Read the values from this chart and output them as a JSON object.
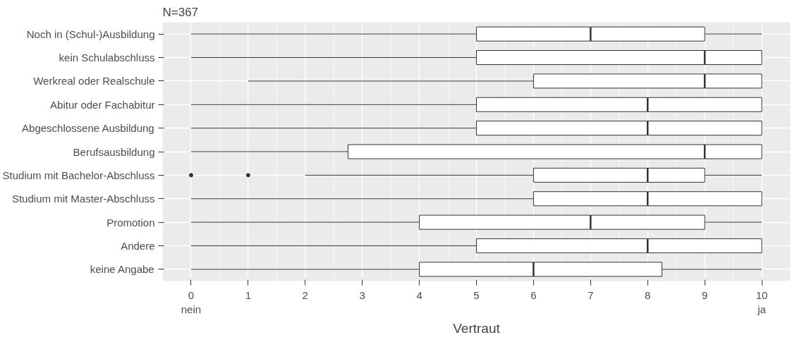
{
  "chart_data": {
    "type": "box",
    "orientation": "horizontal",
    "title": "N=367",
    "xlabel": "Vertraut",
    "categories": [
      "Noch in (Schul-)Ausbildung",
      "kein Schulabschluss",
      "Werkreal oder Realschule",
      "Abitur oder Fachabitur",
      "Abgeschlossene Ausbildung",
      "Berufsausbildung",
      "Studium mit Bachelor-Abschluss",
      "Studium mit Master-Abschluss",
      "Promotion",
      "Andere",
      "keine Angabe"
    ],
    "boxes": [
      {
        "low": 0,
        "q1": 5,
        "median": 7,
        "q3": 9,
        "high": 10
      },
      {
        "low": 0,
        "q1": 5,
        "median": 9,
        "q3": 10,
        "high": 10
      },
      {
        "low": 1,
        "q1": 6,
        "median": 9,
        "q3": 10,
        "high": 10
      },
      {
        "low": 0,
        "q1": 5,
        "median": 8,
        "q3": 10,
        "high": 10
      },
      {
        "low": 0,
        "q1": 5,
        "median": 8,
        "q3": 10,
        "high": 10
      },
      {
        "low": 0,
        "q1": 2.75,
        "median": 9,
        "q3": 10,
        "high": 10
      },
      {
        "low": 2,
        "q1": 6,
        "median": 8,
        "q3": 9,
        "high": 10,
        "outliers": [
          0,
          1
        ]
      },
      {
        "low": 0,
        "q1": 6,
        "median": 8,
        "q3": 10,
        "high": 10
      },
      {
        "low": 0,
        "q1": 4,
        "median": 7,
        "q3": 9,
        "high": 10
      },
      {
        "low": 0,
        "q1": 5,
        "median": 8,
        "q3": 10,
        "high": 10
      },
      {
        "low": 0,
        "q1": 4,
        "median": 6,
        "q3": 8.25,
        "high": 10
      }
    ],
    "xlim": [
      -0.5,
      10.5
    ],
    "xticks": [
      {
        "value": 0,
        "label": "0\nnein"
      },
      1,
      2,
      3,
      4,
      5,
      6,
      7,
      8,
      9,
      {
        "value": 10,
        "label": "10\nja"
      }
    ],
    "grid": true
  }
}
